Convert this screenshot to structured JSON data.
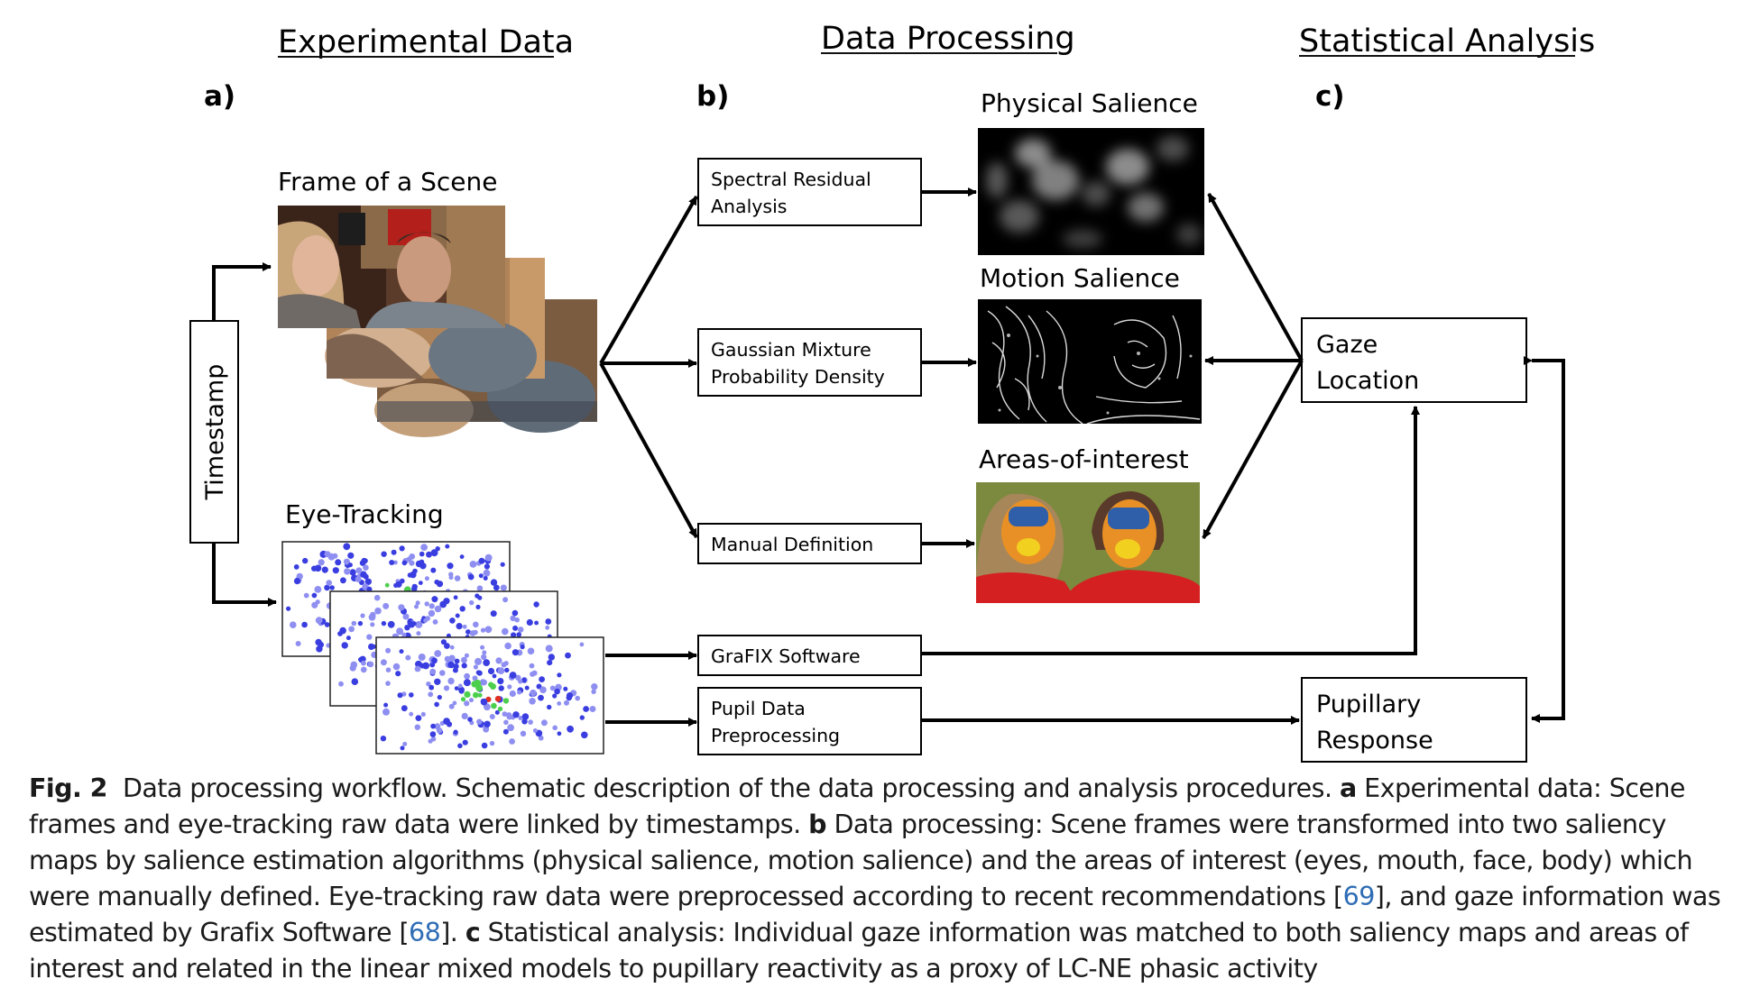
{
  "headers": {
    "experimental": "Experimental Data",
    "processing": "Data Processing",
    "statistical": "Statistical Analysis"
  },
  "panel_labels": {
    "a": "a)",
    "b": "b)",
    "c": "c)"
  },
  "experimental": {
    "frame_label": "Frame of a Scene",
    "eyetracking_label": "Eye-Tracking",
    "timestamp_label": "Timestamp"
  },
  "processing_boxes": {
    "spectral": [
      "Spectral Residual",
      "Analysis"
    ],
    "gaussian": [
      "Gaussian Mixture",
      "Probability Density"
    ],
    "manual": [
      "Manual Definition"
    ],
    "grafix": [
      "GraFIX Software"
    ],
    "pupil": [
      "Pupil Data",
      "Preprocessing"
    ]
  },
  "outputs": {
    "physical": "Physical Salience",
    "motion": "Motion Salience",
    "aoi": "Areas-of-interest"
  },
  "analysis_boxes": {
    "gaze": [
      "Gaze",
      "Location"
    ],
    "pupillary": [
      "Pupillary",
      "Response"
    ]
  },
  "caption": {
    "fig": "Fig. 2",
    "p1": "Data processing workflow. Schematic description of the data processing and analysis procedures. ",
    "a": "a",
    "p2": " Experimental data: Scene frames and eye-tracking raw data were linked by timestamps. ",
    "b": "b",
    "p3": " Data processing: Scene frames were transformed into two saliency maps by salience estimation algorithms (physical salience, motion salience) and the areas of interest (eyes, mouth, face, body) which were manually defined. Eye-tracking raw data were preprocessed according to recent recommendations [",
    "ref69": "69",
    "p4": "], and gaze information was estimated by Grafix Software [",
    "ref68": "68",
    "p5": "]. ",
    "c": "c",
    "p6": " Statistical analysis: Individual gaze information was matched to both saliency maps and areas of interest and related in the linear mixed models to pupillary reactivity as a proxy of LC-NE phasic activity"
  },
  "colors": {
    "heatmap_blue": "#3a3ee0",
    "heatmap_light": "#8f8ff2",
    "heatmap_green": "#4ccf4c",
    "heatmap_red": "#e03020",
    "aoi_bg": "#7b8a3e",
    "aoi_face": "#e89025",
    "aoi_eyes": "#2f5fa8",
    "aoi_mouth": "#f2d020",
    "aoi_body": "#d42020"
  }
}
